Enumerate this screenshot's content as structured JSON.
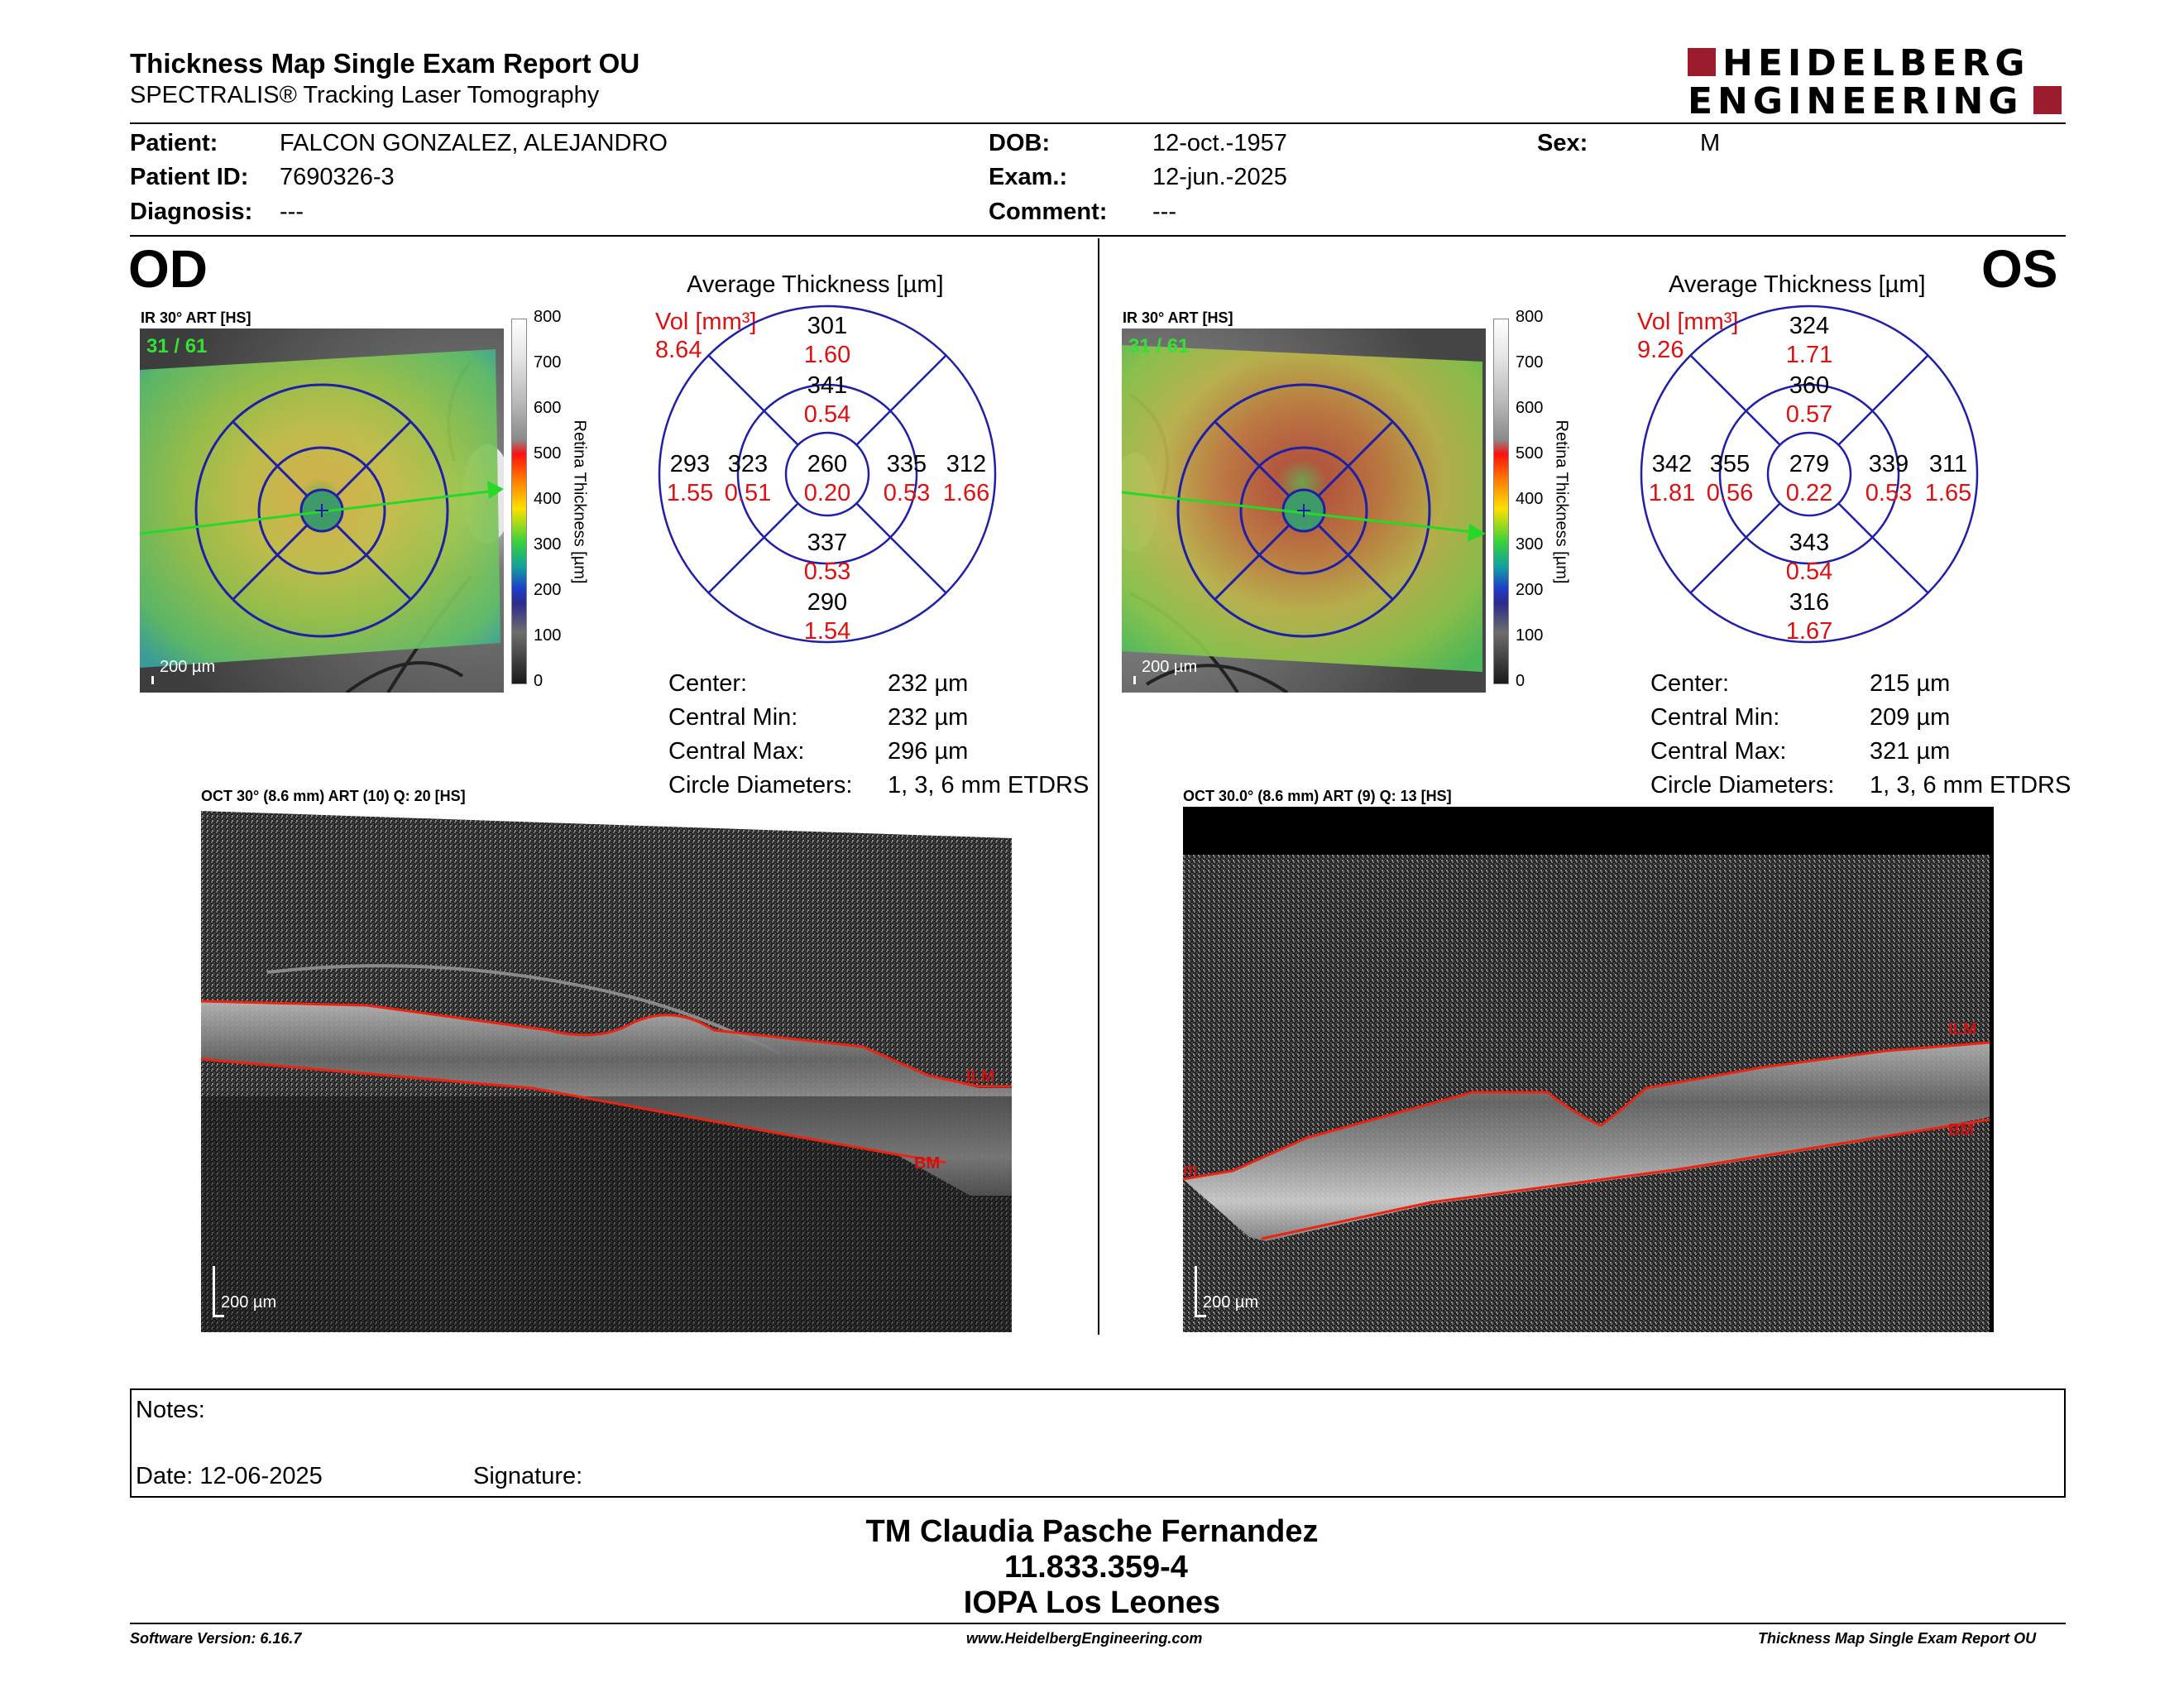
{
  "header": {
    "title": "Thickness Map Single Exam Report OU",
    "subtitle": "SPECTRALIS® Tracking Laser Tomography",
    "logo_line1": "HEIDELBERG",
    "logo_line2": "ENGINEERING",
    "brand_color": "#9b1c2c"
  },
  "patient": {
    "patient_label": "Patient:",
    "patient_name": "FALCON GONZALEZ, ALEJANDRO",
    "id_label": "Patient ID:",
    "id_value": "7690326-3",
    "diag_label": "Diagnosis:",
    "diag_value": "---",
    "dob_label": "DOB:",
    "dob_value": "12-oct.-1957",
    "exam_label": "Exam.:",
    "exam_value": "12-jun.-2025",
    "comment_label": "Comment:",
    "comment_value": "---",
    "sex_label": "Sex:",
    "sex_value": "M"
  },
  "od": {
    "eye_label": "OD",
    "ir_label": "IR 30° ART [HS]",
    "frame_counter": "31 / 61",
    "scale_bar": "200 µm",
    "colorbar_ticks": [
      "800",
      "700",
      "600",
      "500",
      "400",
      "300",
      "200",
      "100",
      "0"
    ],
    "colorbar_title": "Retina Thickness [µm]",
    "avg_title": "Average Thickness [µm]",
    "vol_label": "Vol [mm³]",
    "vol_total": "8.64",
    "etdrs": {
      "outer_sup": {
        "t": "301",
        "v": "1.60"
      },
      "inner_sup": {
        "t": "341",
        "v": "0.54"
      },
      "outer_temp": {
        "t": "293",
        "v": "1.55"
      },
      "inner_temp": {
        "t": "323",
        "v": "0.51"
      },
      "center": {
        "t": "260",
        "v": "0.20"
      },
      "inner_nas": {
        "t": "335",
        "v": "0.53"
      },
      "outer_nas": {
        "t": "312",
        "v": "1.66"
      },
      "inner_inf": {
        "t": "337",
        "v": "0.53"
      },
      "outer_inf": {
        "t": "290",
        "v": "1.54"
      }
    },
    "stats": [
      {
        "label": "Center:",
        "value": "232 µm"
      },
      {
        "label": "Central Min:",
        "value": "232 µm"
      },
      {
        "label": "Central Max:",
        "value": "296 µm"
      },
      {
        "label": "Circle Diameters:",
        "value": "1, 3, 6 mm ETDRS"
      }
    ],
    "oct_label": "OCT 30° (8.6 mm) ART (10) Q: 20 [HS]",
    "oct_scale": "200 µm",
    "ilm": "ILM",
    "bm": "BM"
  },
  "os": {
    "eye_label": "OS",
    "ir_label": "IR 30° ART [HS]",
    "frame_counter": "31 / 61",
    "scale_bar": "200 µm",
    "colorbar_ticks": [
      "800",
      "700",
      "600",
      "500",
      "400",
      "300",
      "200",
      "100",
      "0"
    ],
    "colorbar_title": "Retina Thickness [µm]",
    "avg_title": "Average Thickness [µm]",
    "vol_label": "Vol [mm³]",
    "vol_total": "9.26",
    "etdrs": {
      "outer_sup": {
        "t": "324",
        "v": "1.71"
      },
      "inner_sup": {
        "t": "360",
        "v": "0.57"
      },
      "outer_temp": {
        "t": "342",
        "v": "1.81"
      },
      "inner_temp": {
        "t": "355",
        "v": "0.56"
      },
      "center": {
        "t": "279",
        "v": "0.22"
      },
      "inner_nas": {
        "t": "339",
        "v": "0.53"
      },
      "outer_nas": {
        "t": "311",
        "v": "1.65"
      },
      "inner_inf": {
        "t": "343",
        "v": "0.54"
      },
      "outer_inf": {
        "t": "316",
        "v": "1.67"
      }
    },
    "stats": [
      {
        "label": "Center:",
        "value": "215 µm"
      },
      {
        "label": "Central Min:",
        "value": "209 µm"
      },
      {
        "label": "Central Max:",
        "value": "321 µm"
      },
      {
        "label": "Circle Diameters:",
        "value": "1, 3, 6 mm ETDRS"
      }
    ],
    "oct_label": "OCT 30.0° (8.6 mm) ART (9) Q: 13 [HS]",
    "oct_scale": "200 µm",
    "ilm": "ILM",
    "bm": "BM",
    "ilm_edge": "m"
  },
  "notes": {
    "notes_label": "Notes:",
    "date_label": "Date: 12-06-2025",
    "signature_label": "Signature:"
  },
  "signer": {
    "name": "TM Claudia Pasche Fernandez",
    "id": "11.833.359-4",
    "org": "IOPA Los Leones"
  },
  "footer": {
    "software": "Software Version: 6.16.7",
    "website": "www.HeidelbergEngineering.com",
    "report": "Thickness Map Single Exam Report OU"
  }
}
